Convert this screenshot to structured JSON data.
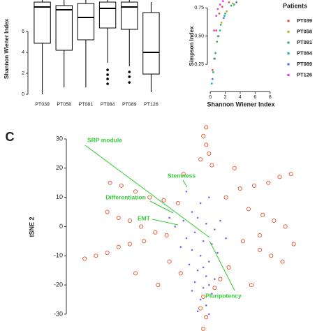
{
  "chart_data": [
    {
      "type": "box",
      "y_label": "Shannon Wiener Index",
      "categories": [
        "PT039",
        "PT058",
        "PT081",
        "PT084",
        "PT089",
        "PT126"
      ],
      "boxes": [
        {
          "whisker_low": 0,
          "q1": 4.87,
          "median": 8.33,
          "q3": 8.8,
          "whisker_high": 9,
          "outliers": []
        },
        {
          "whisker_low": 0.67,
          "q1": 4.2,
          "median": 8.07,
          "q3": 8.47,
          "whisker_high": 9,
          "outliers": []
        },
        {
          "whisker_low": 0.67,
          "q1": 5.2,
          "median": 7.33,
          "q3": 8.67,
          "whisker_high": 9,
          "outliers": []
        },
        {
          "whisker_low": 3.0,
          "q1": 6.33,
          "median": 8.2,
          "q3": 8.8,
          "whisker_high": 9,
          "outliers": [
            2.33,
            1.87,
            1.47,
            1.0
          ]
        },
        {
          "whisker_low": 2.67,
          "q1": 6.2,
          "median": 8.33,
          "q3": 8.8,
          "whisker_high": 9,
          "outliers": [
            2.13,
            1.67,
            1.13
          ]
        },
        {
          "whisker_low": 0.2,
          "q1": 1.93,
          "median": 4.0,
          "q3": 7.8,
          "whisker_high": 8.8,
          "outliers": []
        }
      ],
      "color": "#000000",
      "ylim": [
        -0.5,
        9
      ],
      "yticks": [
        0,
        2,
        4,
        6
      ]
    },
    {
      "type": "scatter",
      "x_label": "Shannon Wiener Index",
      "y_label": "Simpson Index",
      "legend_title": "Patients",
      "series": [
        {
          "name": "PT039",
          "color": "#e8534a",
          "x": [
            0.3,
            0.8,
            1.2,
            1.6,
            2.5
          ],
          "values": [
            0.2,
            0.55,
            0.7,
            0.76,
            0.8
          ]
        },
        {
          "name": "PT058",
          "color": "#b5b51d",
          "x": [
            0.5,
            1.0,
            1.5,
            2.2,
            3.0
          ],
          "values": [
            0.3,
            0.5,
            0.62,
            0.72,
            0.79
          ]
        },
        {
          "name": "PT081",
          "color": "#3cb371",
          "x": [
            0.4,
            0.9,
            1.4,
            2.0,
            3.2
          ],
          "values": [
            0.18,
            0.45,
            0.6,
            0.7,
            0.78
          ]
        },
        {
          "name": "PT084",
          "color": "#20b2aa",
          "x": [
            0.2,
            0.7,
            1.3,
            1.9,
            2.8
          ],
          "values": [
            0.08,
            0.35,
            0.55,
            0.68,
            0.77
          ]
        },
        {
          "name": "PT089",
          "color": "#4f7fe0",
          "x": [
            0.3,
            0.6,
            1.1,
            1.8,
            3.5
          ],
          "values": [
            0.12,
            0.3,
            0.5,
            0.66,
            0.8
          ]
        },
        {
          "name": "PT126",
          "color": "#e040e0",
          "x": [
            0.5,
            0.8,
            1.0,
            1.3,
            1.7
          ],
          "values": [
            0.55,
            0.68,
            0.74,
            0.78,
            0.81
          ]
        }
      ],
      "xlim": [
        -0.2,
        8.3
      ],
      "xticks": [
        0,
        2,
        4,
        6,
        8
      ],
      "ylim": [
        -0.03,
        0.82
      ],
      "yticks": [
        0.25,
        {
          "value": 0.5,
          "label": "0.50"
        },
        0.75
      ]
    },
    {
      "type": "scatter",
      "panel_label": "C",
      "y_label": "tSNE 2",
      "annotations": [
        "SRP module",
        "Stemness",
        "Differentiation",
        "EMT",
        "Pluripotency"
      ],
      "annotation_color": "#33cc33",
      "series": [
        {
          "color": "#e8542a",
          "hollow": true,
          "x": [
            5,
            4,
            5,
            6,
            3,
            7,
            35,
            31,
            27,
            22,
            17,
            12,
            -29,
            -25,
            -20,
            -15,
            -10,
            -5,
            -30,
            -26,
            -22,
            -18,
            -13,
            -9,
            -38,
            -34,
            -30,
            -26,
            -22,
            -17,
            20,
            25,
            29,
            33,
            24,
            18,
            32,
            28,
            24,
            13,
            10,
            8,
            4,
            3,
            5,
            4,
            -4,
            -8,
            -12,
            15,
            -3,
            36,
            -20,
            21
          ],
          "values": [
            34,
            31,
            28,
            25,
            23,
            21,
            18,
            17,
            15,
            14,
            13,
            10,
            15,
            14,
            12,
            10,
            9,
            8,
            5,
            3,
            2,
            0,
            -2,
            -3,
            -11,
            -10,
            -9,
            -7,
            -6,
            -5,
            6,
            4,
            2,
            0,
            -3,
            -5,
            -12,
            -10,
            -8,
            -14,
            -18,
            -21,
            -24,
            -28,
            -31,
            -35,
            -16,
            -12,
            -20,
            20,
            18,
            -6,
            -16,
            -20
          ]
        },
        {
          "color": "#7b68ee",
          "hollow": false,
          "x": [
            0,
            2,
            -3,
            5,
            8,
            1,
            -2,
            4,
            7,
            0,
            3,
            6,
            -1,
            2,
            5,
            8,
            1,
            4,
            7,
            3,
            5,
            2,
            6,
            -6,
            -8,
            10,
            12,
            -4,
            3,
            6,
            -2,
            9,
            4,
            0,
            6
          ],
          "values": [
            5,
            3,
            2,
            1,
            -1,
            -2,
            -4,
            -5,
            -6,
            -8,
            -10,
            -12,
            -13,
            -15,
            -17,
            -18,
            -19,
            -21,
            -23,
            -25,
            -27,
            -29,
            -30,
            0,
            3,
            2,
            -4,
            -7,
            8,
            10,
            12,
            -9,
            -14,
            -22,
            -20
          ]
        }
      ],
      "xlim": [
        -42,
        42
      ],
      "ylim": [
        -35,
        35.5
      ],
      "yticks": [
        -30,
        -20,
        -10,
        0,
        10,
        20,
        30
      ]
    }
  ]
}
